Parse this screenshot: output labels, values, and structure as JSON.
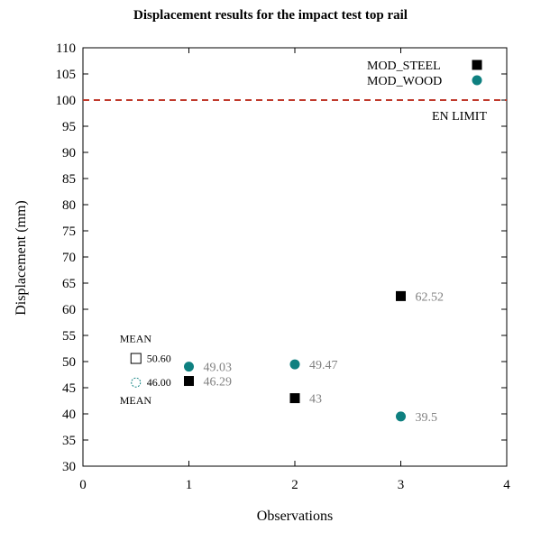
{
  "chart_data": {
    "type": "scatter",
    "title": "Displacement results for the impact test top rail",
    "xlabel": "Observations",
    "ylabel": "Displacement (mm)",
    "xlim": [
      0,
      4
    ],
    "ylim": [
      30,
      110
    ],
    "x_ticks": [
      "0",
      "1",
      "2",
      "3",
      "4"
    ],
    "y_ticks": [
      "30",
      "35",
      "40",
      "45",
      "50",
      "55",
      "60",
      "65",
      "70",
      "75",
      "80",
      "85",
      "90",
      "95",
      "100",
      "105",
      "110"
    ],
    "grid": false,
    "legend_placement": "top-right",
    "series": [
      {
        "name": "MOD_STEEL",
        "marker": "square",
        "color": "#000000",
        "points": [
          {
            "x": 1,
            "y": 46.29,
            "label": "46.29"
          },
          {
            "x": 2,
            "y": 43,
            "label": "43"
          },
          {
            "x": 3,
            "y": 62.52,
            "label": "62.52"
          }
        ]
      },
      {
        "name": "MOD_WOOD",
        "marker": "circle",
        "color": "#0e8080",
        "points": [
          {
            "x": 1,
            "y": 49.03,
            "label": "49.03"
          },
          {
            "x": 2,
            "y": 49.47,
            "label": "49.47"
          },
          {
            "x": 3,
            "y": 39.5,
            "label": "39.5"
          }
        ]
      }
    ],
    "reference_line": {
      "y": 100,
      "label": "EN LIMIT",
      "color": "#c0392b",
      "style": "dashed"
    },
    "means": [
      {
        "series": "MOD_STEEL",
        "x": 0.5,
        "value": 50.6,
        "label": "50.60",
        "caption": "MEAN"
      },
      {
        "series": "MOD_WOOD",
        "x": 0.5,
        "value": 46.0,
        "label": "46.00",
        "caption": "MEAN"
      }
    ]
  }
}
